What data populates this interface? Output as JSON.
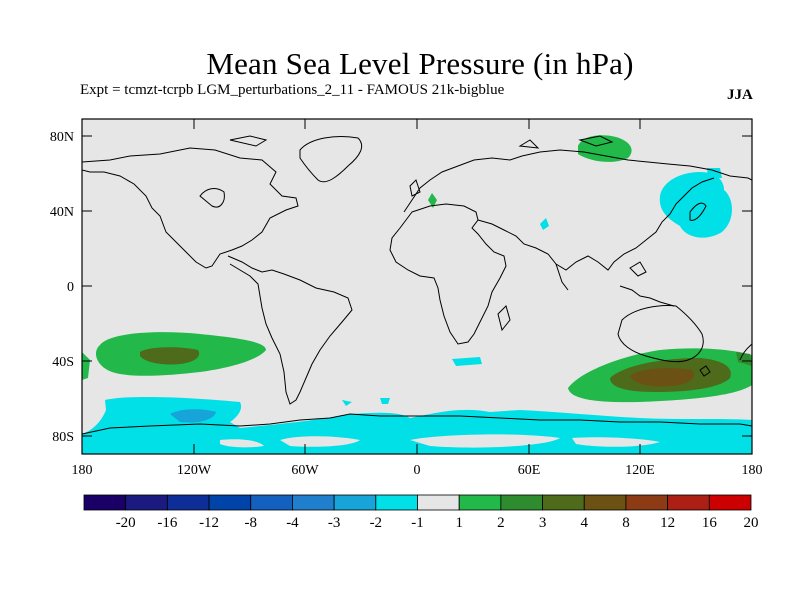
{
  "title": "Mean Sea Level Pressure (in hPa)",
  "subtitle": "Expt = tcmzt-tcrpb    LGM_perturbations_2_11 - FAMOUS 21k-bigblue",
  "season": "JJA",
  "lat_labels": [
    "80N",
    "40N",
    "0",
    "40S",
    "80S"
  ],
  "lon_labels": [
    "180",
    "120W",
    "60W",
    "0",
    "60E",
    "120E",
    "180"
  ],
  "colorbar": {
    "labels": [
      "-20",
      "-16",
      "-12",
      "-8",
      "-4",
      "-3",
      "-2",
      "-1",
      "1",
      "2",
      "3",
      "4",
      "8",
      "12",
      "16",
      "20"
    ],
    "colors": [
      "#1a0066",
      "#1a1a80",
      "#0d2e99",
      "#0044aa",
      "#1460bf",
      "#1f7fcc",
      "#16a4d9",
      "#00e0e6",
      "#e6e6e6",
      "#22b84a",
      "#2e8c2e",
      "#4d6b1a",
      "#6b5214",
      "#8c3b14",
      "#ab1f14",
      "#cc0000"
    ]
  },
  "colors": {
    "land_ocean": "#e6e6e6",
    "coast": "#000000",
    "pos_1_2": "#22b84a",
    "pos_2_3": "#2e8c2e",
    "pos_3_4": "#4d6b1a",
    "pos_4_8": "#6b5214",
    "neg_1_2": "#00e0e6",
    "neg_2_3": "#16a4d9"
  }
}
